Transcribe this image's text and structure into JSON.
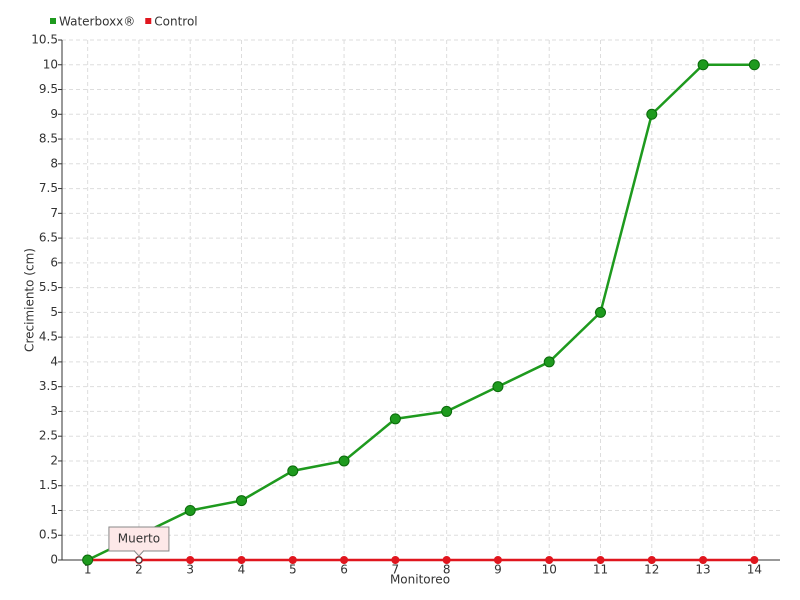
{
  "chart_data": {
    "type": "line",
    "x_label": "Monitoreo",
    "y_label": "Crecimiento (cm)",
    "categories": [
      "1",
      "2",
      "3",
      "4",
      "5",
      "6",
      "7",
      "8",
      "9",
      "10",
      "11",
      "12",
      "13",
      "14"
    ],
    "series": [
      {
        "name": "Waterboxx®",
        "color": "#1e9a1e",
        "values": [
          0,
          0.5,
          1,
          1.2,
          1.8,
          2,
          2.85,
          3,
          3.5,
          4,
          5,
          9,
          10,
          10
        ]
      },
      {
        "name": "Control",
        "color": "#e0161e",
        "values": [
          0,
          0,
          0,
          0,
          0,
          0,
          0,
          0,
          0,
          0,
          0,
          0,
          0,
          0
        ]
      }
    ],
    "ylim": [
      0,
      10.5
    ],
    "yticks": [
      0,
      0.5,
      1,
      1.5,
      2,
      2.5,
      3,
      3.5,
      4,
      4.5,
      5,
      5.5,
      6,
      6.5,
      7,
      7.5,
      8,
      8.5,
      9,
      9.5,
      10,
      10.5
    ],
    "grid": true,
    "legend": "top-left",
    "annotation": {
      "text": "Muerto",
      "series": "Control",
      "category": "2"
    }
  }
}
